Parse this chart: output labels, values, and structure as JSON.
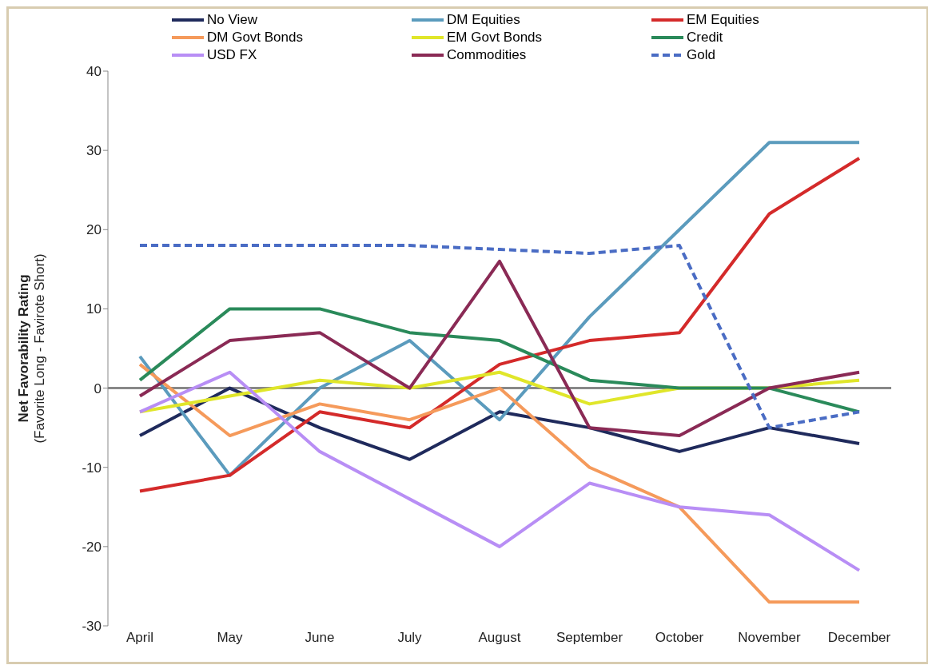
{
  "chart_data": {
    "type": "line",
    "ylabel": "Net Favorability Rating\n(Favorite Long - Favirote Short)",
    "categories": [
      "April",
      "May",
      "June",
      "July",
      "August",
      "September",
      "October",
      "November",
      "December"
    ],
    "series": [
      {
        "name": "No View",
        "color": "#1f2a5c",
        "values": [
          -6,
          0,
          -5,
          -9,
          -3,
          -5,
          -8,
          -5,
          -7
        ]
      },
      {
        "name": "DM Equities",
        "color": "#5b9bbd",
        "values": [
          4,
          -11,
          0,
          6,
          -4,
          9,
          20,
          31,
          31
        ]
      },
      {
        "name": "EM Equities",
        "color": "#d42a2a",
        "values": [
          -13,
          -11,
          -3,
          -5,
          3,
          6,
          7,
          22,
          29
        ]
      },
      {
        "name": "DM Govt Bonds",
        "color": "#f59a5b",
        "values": [
          3,
          -6,
          -2,
          -4,
          0,
          -10,
          -15,
          -27,
          -27
        ]
      },
      {
        "name": "EM Govt Bonds",
        "color": "#e0e62a",
        "values": [
          -3,
          -1,
          1,
          0,
          2,
          -2,
          0,
          0,
          1
        ]
      },
      {
        "name": "Credit",
        "color": "#2a8a5a",
        "values": [
          1,
          10,
          10,
          7,
          6,
          1,
          0,
          0,
          -3
        ]
      },
      {
        "name": "USD FX",
        "color": "#b88ef5",
        "values": [
          -3,
          2,
          -8,
          -14,
          -20,
          -12,
          -15,
          -16,
          -23
        ]
      },
      {
        "name": "Commodities",
        "color": "#8a2a55",
        "values": [
          -1,
          6,
          7,
          0,
          16,
          -5,
          -6,
          0,
          2
        ]
      },
      {
        "name": "Gold",
        "color": "#4a6cc4",
        "line_style": "dashed",
        "values": [
          18,
          18,
          18,
          18,
          17.5,
          17,
          18,
          -5,
          -3
        ]
      }
    ],
    "ylim": [
      -30,
      40
    ],
    "yticks": [
      -30,
      -20,
      -10,
      0,
      10,
      20,
      30,
      40
    ],
    "grid": false,
    "ref_lines": [
      {
        "axis": "y",
        "value": 0,
        "color": "#888888"
      }
    ],
    "legend": "top",
    "marker": "none"
  }
}
